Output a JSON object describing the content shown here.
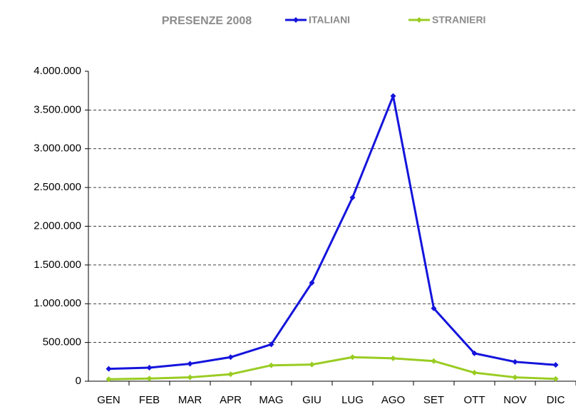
{
  "chart_data": {
    "type": "line",
    "title": "PRESENZE 2008",
    "categories": [
      "GEN",
      "FEB",
      "MAR",
      "APR",
      "MAG",
      "GIU",
      "LUG",
      "AGO",
      "SET",
      "OTT",
      "NOV",
      "DIC"
    ],
    "series": [
      {
        "name": "ITALIANI",
        "color": "#1414dc",
        "values": [
          160000,
          175000,
          225000,
          310000,
          475000,
          1270000,
          2370000,
          3680000,
          940000,
          360000,
          250000,
          210000
        ]
      },
      {
        "name": "STRANIERI",
        "color": "#99cc22",
        "values": [
          25000,
          35000,
          50000,
          90000,
          205000,
          215000,
          310000,
          295000,
          260000,
          110000,
          50000,
          30000
        ]
      }
    ],
    "ylim": [
      0,
      4000000
    ],
    "yticks": [
      0,
      {
        "value": 500000,
        "label": "500.000"
      },
      {
        "value": 1000000,
        "label": "1.000.000"
      },
      {
        "value": 1500000,
        "label": "1.500.000"
      },
      {
        "value": 2000000,
        "label": "2.000.000"
      },
      {
        "value": 2500000,
        "label": "2.500.000"
      },
      {
        "value": 3000000,
        "label": "3.000.000"
      },
      {
        "value": 3500000,
        "label": "3.500.000"
      },
      {
        "value": 4000000,
        "label": "4.000.000"
      }
    ],
    "grid": true,
    "legend": "top"
  }
}
